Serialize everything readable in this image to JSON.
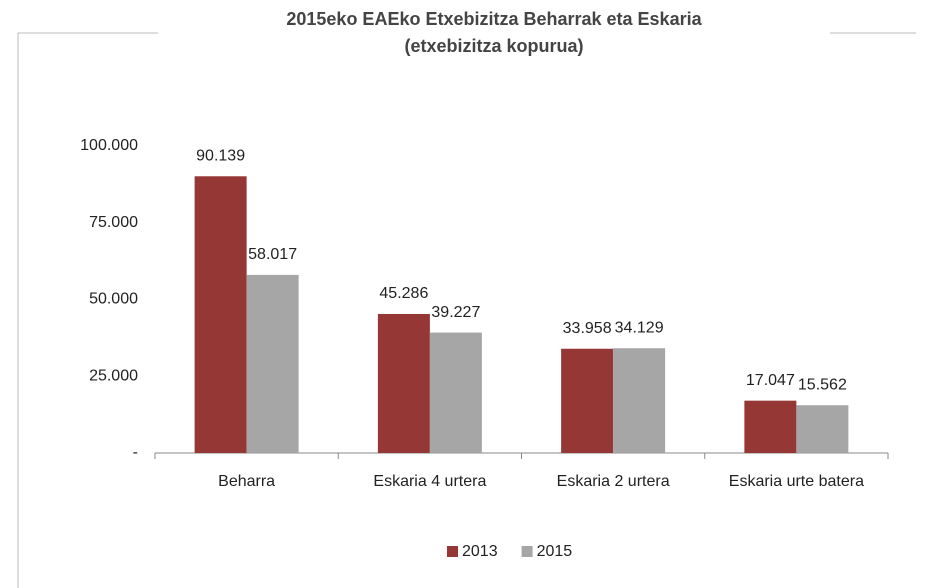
{
  "chart_data": {
    "type": "bar",
    "title": "2015eko EAEko Etxebizitza Beharrak eta Eskaria",
    "subtitle": "(etxebizitza kopurua)",
    "categories": [
      "Beharra",
      "Eskaria 4 urtera",
      "Eskaria 2 urtera",
      "Eskaria urte batera"
    ],
    "series": [
      {
        "name": "2013",
        "color": "#953735",
        "values": [
          90139,
          45286,
          33958,
          17047
        ],
        "value_labels": [
          "90.139",
          "45.286",
          "33.958",
          "17.047"
        ]
      },
      {
        "name": "2015",
        "color": "#a6a6a6",
        "values": [
          58017,
          39227,
          34129,
          15562
        ],
        "value_labels": [
          "58.017",
          "39.227",
          "34.129",
          "15.562"
        ]
      }
    ],
    "ylim": [
      0,
      100000
    ],
    "yticks": [
      {
        "value": 0,
        "label": "-"
      },
      {
        "value": 25000,
        "label": "25.000"
      },
      {
        "value": 50000,
        "label": "50.000"
      },
      {
        "value": 75000,
        "label": "75.000"
      },
      {
        "value": 100000,
        "label": "100.000"
      }
    ],
    "grid": false,
    "legend": "bottom"
  }
}
